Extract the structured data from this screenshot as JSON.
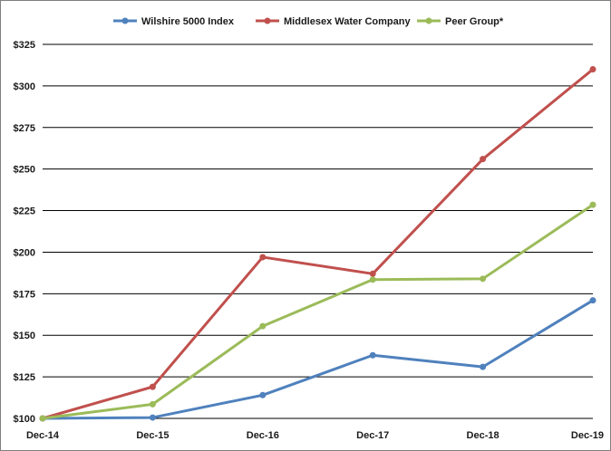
{
  "chart_data": {
    "type": "line",
    "categories": [
      "Dec-14",
      "Dec-15",
      "Dec-16",
      "Dec-17",
      "Dec-18",
      "Dec-19"
    ],
    "series": [
      {
        "name": "Wilshire 5000 Index",
        "color": "#4f81bd",
        "values": [
          100,
          100.5,
          114,
          138,
          131,
          171
        ]
      },
      {
        "name": "Middlesex Water Company",
        "color": "#c0504d",
        "values": [
          100,
          119,
          197,
          187,
          256,
          310
        ]
      },
      {
        "name": "Peer Group*",
        "color": "#9bbb59",
        "values": [
          100,
          108.5,
          155.5,
          183.5,
          184,
          228.5
        ]
      }
    ],
    "y_ticks": [
      "$100",
      "$125",
      "$150",
      "$175",
      "$200",
      "$225",
      "$250",
      "$275",
      "$300",
      "$325"
    ],
    "y_tick_values": [
      100,
      125,
      150,
      175,
      200,
      225,
      250,
      275,
      300,
      325
    ],
    "ylim": [
      100,
      325
    ],
    "grid": "horizontal",
    "legend_position": "top"
  }
}
